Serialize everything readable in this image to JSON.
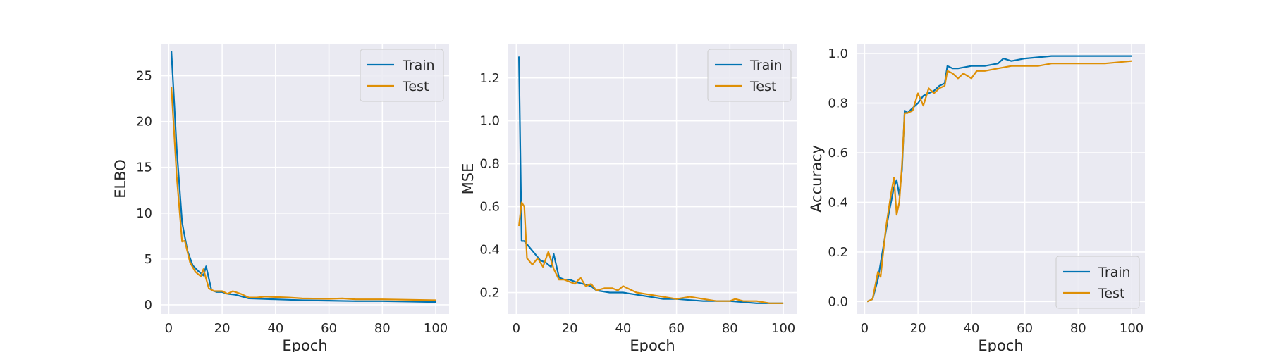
{
  "colors": {
    "train": "#0173b2",
    "test": "#de8f05",
    "panel_bg": "#eaeaf2",
    "grid": "#ffffff"
  },
  "chart_data": [
    {
      "type": "line",
      "title": "",
      "xlabel": "Epoch",
      "ylabel": "ELBO",
      "xlim": [
        -3,
        105
      ],
      "ylim": [
        -1,
        28.5
      ],
      "xticks": [
        0,
        20,
        40,
        60,
        80,
        100
      ],
      "yticks": [
        0,
        5,
        10,
        15,
        20,
        25
      ],
      "grid": true,
      "legend": "top-right",
      "series": [
        {
          "name": "Train",
          "x": [
            1,
            3,
            5,
            7,
            9,
            11,
            13,
            14,
            16,
            18,
            20,
            22,
            25,
            30,
            35,
            40,
            45,
            50,
            60,
            70,
            80,
            90,
            100
          ],
          "y": [
            27.7,
            17,
            9,
            5.9,
            4.3,
            3.7,
            3.2,
            4.2,
            1.6,
            1.4,
            1.4,
            1.2,
            1.1,
            0.7,
            0.65,
            0.6,
            0.55,
            0.5,
            0.45,
            0.4,
            0.4,
            0.35,
            0.3
          ]
        },
        {
          "name": "Test",
          "x": [
            1,
            3,
            5,
            6,
            8,
            10,
            12,
            13,
            15,
            17,
            20,
            22,
            24,
            27,
            30,
            33,
            36,
            40,
            45,
            50,
            60,
            65,
            70,
            80,
            90,
            100
          ],
          "y": [
            23.8,
            14,
            6.9,
            7,
            4.6,
            3.6,
            3.1,
            3.9,
            1.8,
            1.5,
            1.5,
            1.2,
            1.5,
            1.2,
            0.8,
            0.8,
            0.9,
            0.85,
            0.8,
            0.7,
            0.65,
            0.7,
            0.6,
            0.6,
            0.55,
            0.5
          ]
        }
      ]
    },
    {
      "type": "line",
      "title": "",
      "xlabel": "Epoch",
      "ylabel": "MSE",
      "xlim": [
        -3,
        105
      ],
      "ylim": [
        0.1,
        1.36
      ],
      "xticks": [
        0,
        20,
        40,
        60,
        80,
        100
      ],
      "yticks": [
        0.2,
        0.4,
        0.6,
        0.8,
        1.0,
        1.2
      ],
      "yticklabels": [
        "0.2",
        "0.4",
        "0.6",
        "0.8",
        "1.0",
        "1.2"
      ],
      "grid": true,
      "legend": "top-right",
      "series": [
        {
          "name": "Train",
          "x": [
            1,
            2,
            3,
            5,
            7,
            9,
            11,
            13,
            14,
            16,
            18,
            20,
            22,
            25,
            28,
            30,
            35,
            40,
            45,
            50,
            55,
            60,
            70,
            80,
            90,
            100
          ],
          "y": [
            1.3,
            0.44,
            0.44,
            0.41,
            0.38,
            0.35,
            0.34,
            0.32,
            0.38,
            0.27,
            0.26,
            0.26,
            0.25,
            0.24,
            0.23,
            0.21,
            0.2,
            0.2,
            0.19,
            0.18,
            0.17,
            0.17,
            0.16,
            0.16,
            0.15,
            0.15
          ]
        },
        {
          "name": "Test",
          "x": [
            1,
            2,
            3,
            4,
            6,
            8,
            10,
            12,
            14,
            16,
            18,
            20,
            22,
            24,
            26,
            28,
            30,
            33,
            36,
            38,
            40,
            45,
            50,
            55,
            60,
            65,
            70,
            75,
            80,
            82,
            85,
            90,
            95,
            100
          ],
          "y": [
            0.51,
            0.62,
            0.6,
            0.36,
            0.33,
            0.36,
            0.32,
            0.39,
            0.31,
            0.26,
            0.26,
            0.25,
            0.24,
            0.27,
            0.23,
            0.24,
            0.21,
            0.22,
            0.22,
            0.21,
            0.23,
            0.2,
            0.19,
            0.18,
            0.17,
            0.18,
            0.17,
            0.16,
            0.16,
            0.17,
            0.16,
            0.16,
            0.15,
            0.15
          ]
        }
      ]
    },
    {
      "type": "line",
      "title": "",
      "xlabel": "Epoch",
      "ylabel": "Accuracy",
      "xlim": [
        -3,
        105
      ],
      "ylim": [
        -0.05,
        1.04
      ],
      "xticks": [
        0,
        20,
        40,
        60,
        80,
        100
      ],
      "yticks": [
        0.0,
        0.2,
        0.4,
        0.6,
        0.8,
        1.0
      ],
      "yticklabels": [
        "0.0",
        "0.2",
        "0.4",
        "0.6",
        "0.8",
        "1.0"
      ],
      "grid": true,
      "legend": "bottom-right",
      "series": [
        {
          "name": "Train",
          "x": [
            1,
            3,
            5,
            7,
            9,
            11,
            12,
            13,
            14,
            15,
            16,
            18,
            20,
            22,
            24,
            26,
            28,
            30,
            31,
            33,
            35,
            40,
            45,
            50,
            52,
            55,
            60,
            70,
            80,
            90,
            100
          ],
          "y": [
            0.0,
            0.01,
            0.09,
            0.22,
            0.35,
            0.46,
            0.49,
            0.43,
            0.53,
            0.77,
            0.76,
            0.78,
            0.8,
            0.83,
            0.84,
            0.85,
            0.87,
            0.88,
            0.95,
            0.94,
            0.94,
            0.95,
            0.95,
            0.96,
            0.98,
            0.97,
            0.98,
            0.99,
            0.99,
            0.99,
            0.99
          ]
        },
        {
          "name": "Test",
          "x": [
            1,
            3,
            5,
            6,
            8,
            10,
            11,
            12,
            13,
            14,
            15,
            16,
            18,
            20,
            22,
            24,
            26,
            28,
            30,
            31,
            33,
            35,
            37,
            40,
            42,
            45,
            50,
            55,
            60,
            65,
            70,
            80,
            90,
            100
          ],
          "y": [
            0.0,
            0.01,
            0.12,
            0.1,
            0.3,
            0.44,
            0.5,
            0.35,
            0.4,
            0.55,
            0.76,
            0.76,
            0.77,
            0.84,
            0.79,
            0.86,
            0.84,
            0.86,
            0.87,
            0.93,
            0.92,
            0.9,
            0.92,
            0.9,
            0.93,
            0.93,
            0.94,
            0.95,
            0.95,
            0.95,
            0.96,
            0.96,
            0.96,
            0.97
          ]
        }
      ]
    }
  ]
}
